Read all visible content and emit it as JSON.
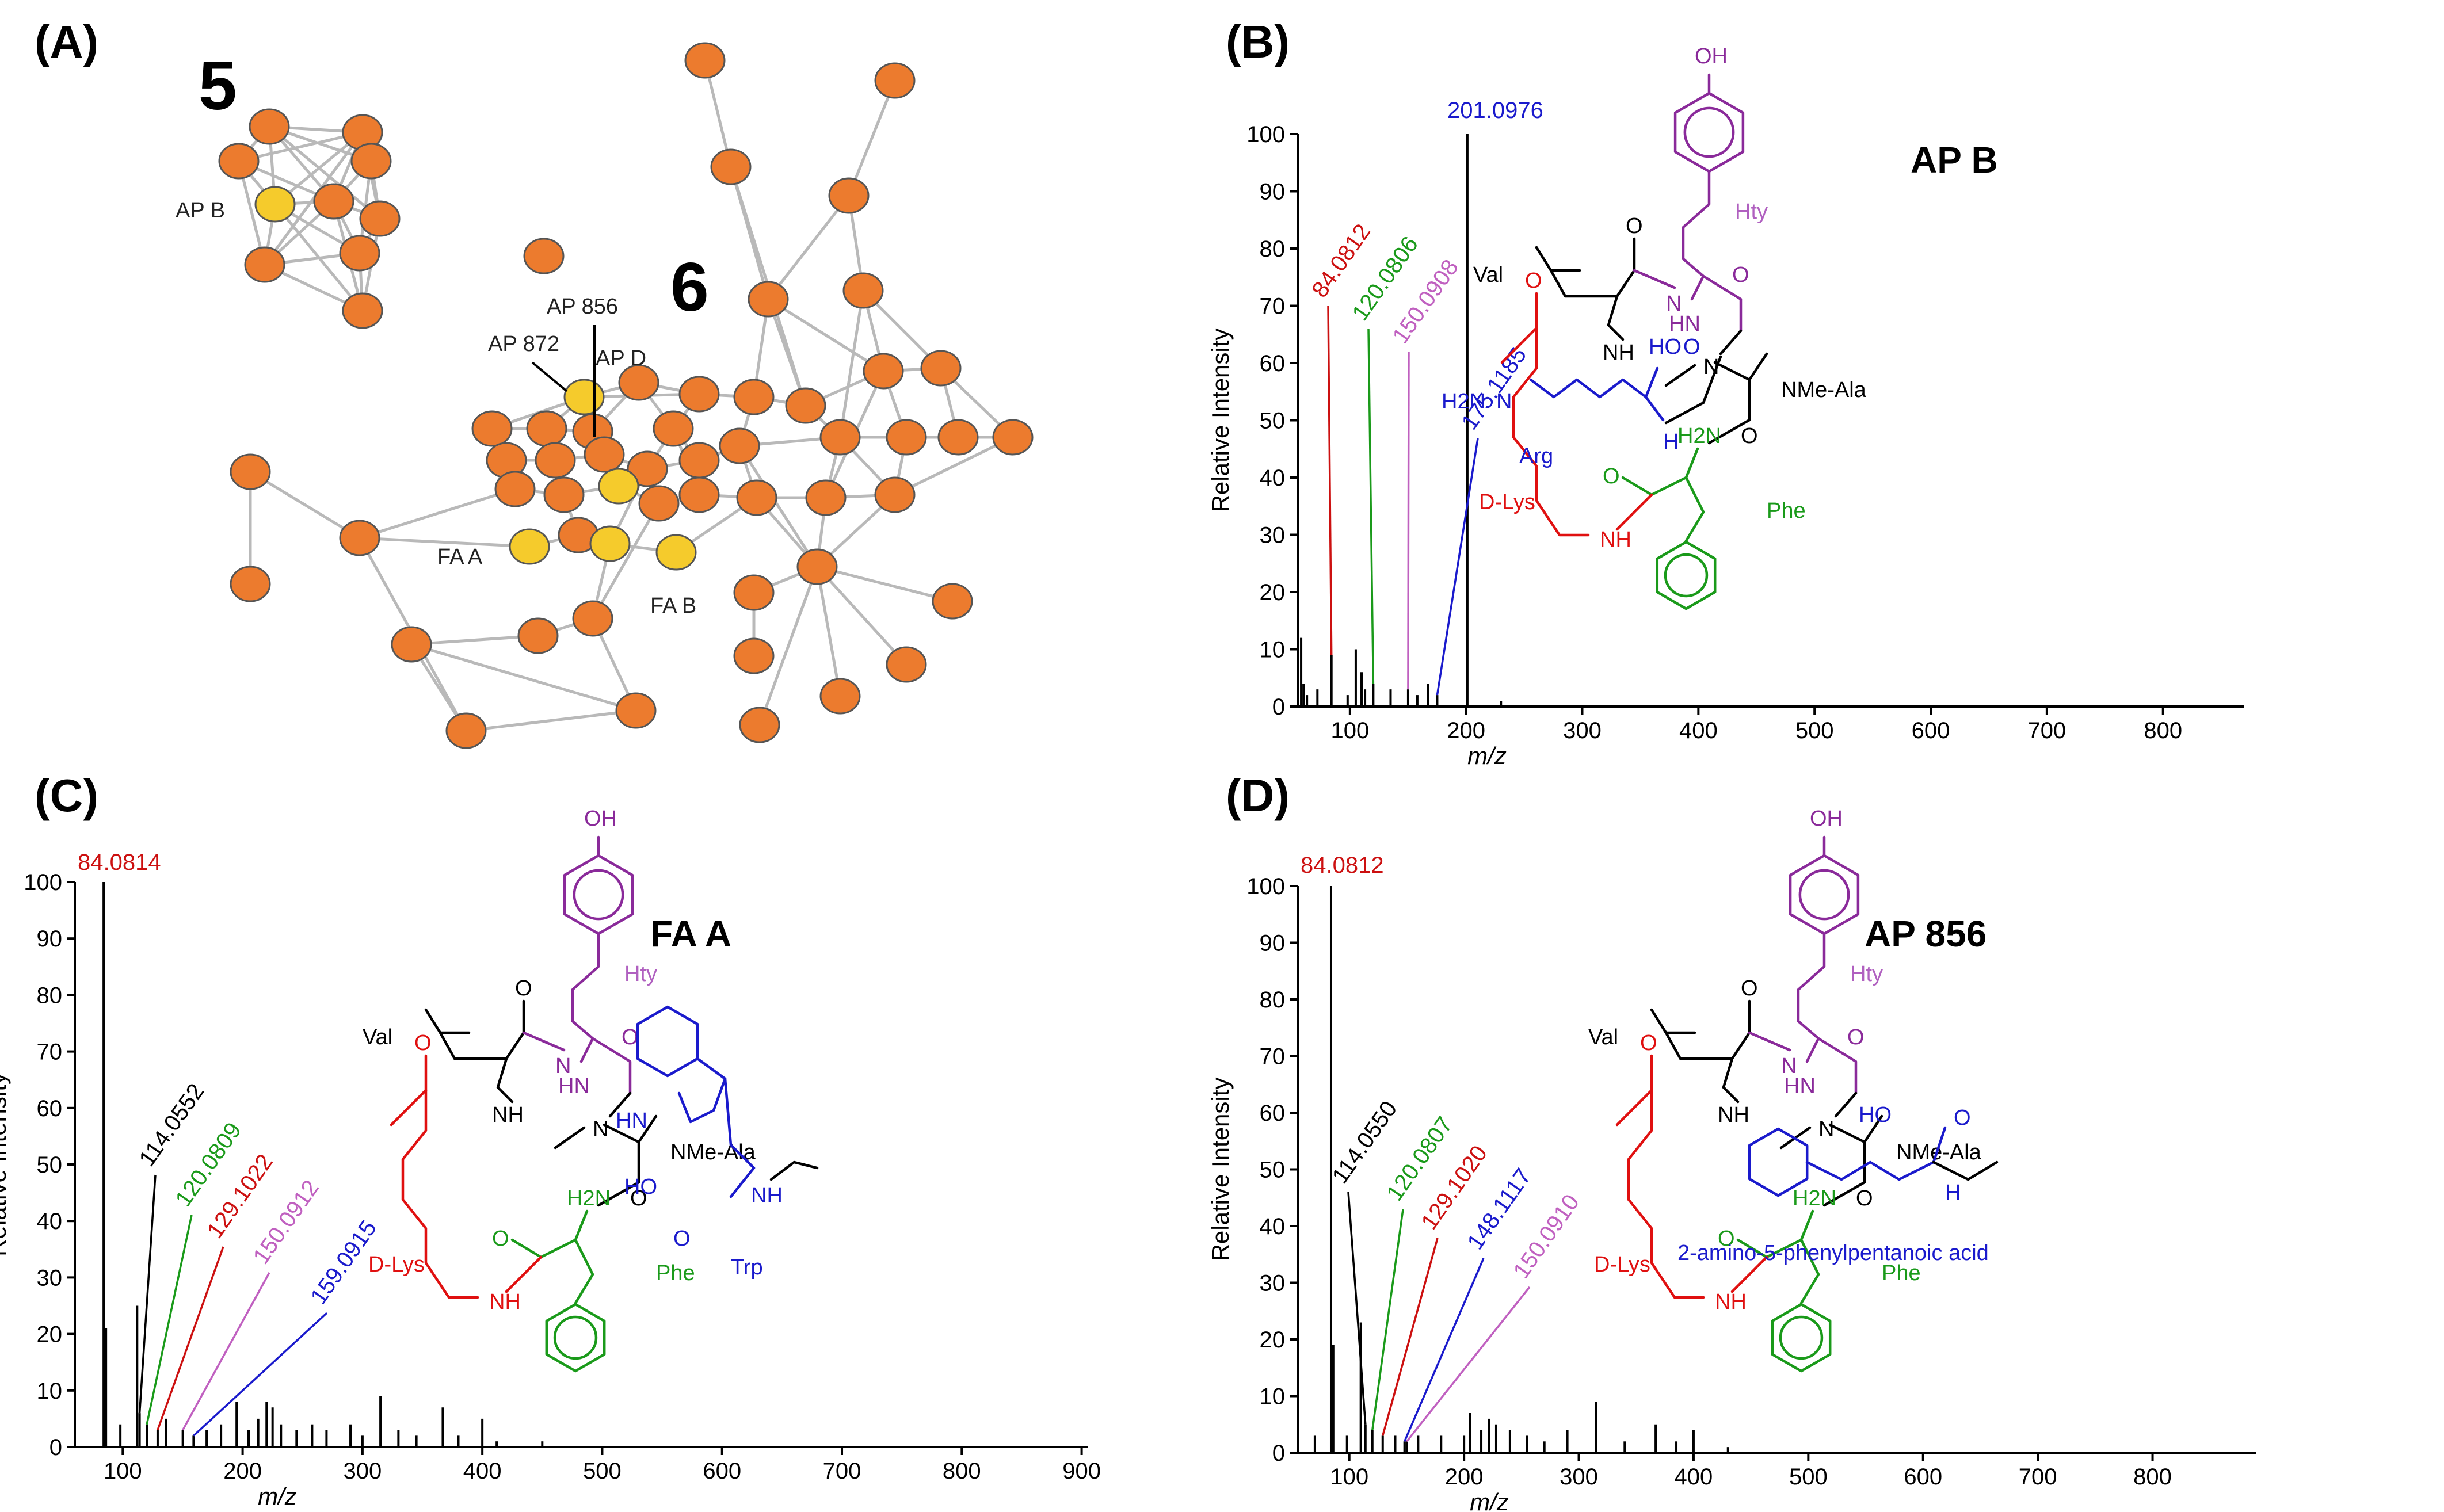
{
  "panels": {
    "A": {
      "label": "(A)",
      "cluster_labels": [
        "5",
        "6"
      ],
      "node_labels": [
        "AP B",
        "AP 856",
        "AP 872",
        "AP D",
        "FA A",
        "FA B"
      ],
      "colors": {
        "node": "#ec7b2e",
        "highlight": "#f5cb2c",
        "edge": "#b9b9b9"
      }
    },
    "B": {
      "label": "(B)"
    },
    "C": {
      "label": "(C)"
    },
    "D": {
      "label": "(D)"
    }
  },
  "chart_data": [
    {
      "panel": "B",
      "type": "bar",
      "title": "AP B",
      "xlabel": "m/z",
      "ylabel": "Relative Intensity",
      "xlim": [
        55,
        870
      ],
      "ylim": [
        0,
        100
      ],
      "xticks": [
        100,
        200,
        300,
        400,
        500,
        600,
        700,
        800
      ],
      "yticks": [
        0,
        10,
        20,
        30,
        40,
        50,
        60,
        70,
        80,
        90,
        100
      ],
      "peaks": [
        [
          58,
          12
        ],
        [
          60,
          4
        ],
        [
          63,
          2
        ],
        [
          72,
          3
        ],
        [
          84.08,
          9
        ],
        [
          98,
          2
        ],
        [
          105,
          10
        ],
        [
          110,
          6
        ],
        [
          113,
          3
        ],
        [
          120.08,
          4
        ],
        [
          135,
          3
        ],
        [
          150.09,
          3
        ],
        [
          158,
          2
        ],
        [
          167,
          4
        ],
        [
          175.12,
          2
        ],
        [
          201.1,
          100
        ],
        [
          230,
          1
        ]
      ],
      "annotations": [
        {
          "label": "201.0976",
          "mz": 201.1,
          "y": 100,
          "color": "#1a1acc"
        },
        {
          "label": "84.0812",
          "mz": 84.08,
          "y": 9,
          "color": "#cc1010"
        },
        {
          "label": "120.0806",
          "mz": 120.08,
          "y": 4,
          "color": "#1a9a1a"
        },
        {
          "label": "150.0908",
          "mz": 150.09,
          "y": 3,
          "color": "#c060c0"
        },
        {
          "label": "175.1185",
          "mz": 175.12,
          "y": 2,
          "color": "#1a1acc"
        }
      ]
    },
    {
      "panel": "C",
      "type": "bar",
      "title": "FA A",
      "xlabel": "m/z",
      "ylabel": "Relative Intensity",
      "xlim": [
        60,
        905
      ],
      "ylim": [
        0,
        100
      ],
      "xticks": [
        100,
        200,
        300,
        400,
        500,
        600,
        700,
        800,
        900
      ],
      "yticks": [
        0,
        10,
        20,
        30,
        40,
        50,
        60,
        70,
        80,
        90,
        100
      ],
      "peaks": [
        [
          84.08,
          100
        ],
        [
          86,
          21
        ],
        [
          98,
          4
        ],
        [
          112,
          25
        ],
        [
          114.06,
          6
        ],
        [
          120.08,
          4
        ],
        [
          129.1,
          3
        ],
        [
          136,
          5
        ],
        [
          150.09,
          3
        ],
        [
          159.09,
          2
        ],
        [
          170,
          3
        ],
        [
          182,
          4
        ],
        [
          195,
          8
        ],
        [
          205,
          3
        ],
        [
          213,
          5
        ],
        [
          220,
          8
        ],
        [
          225,
          7
        ],
        [
          232,
          4
        ],
        [
          245,
          3
        ],
        [
          258,
          4
        ],
        [
          270,
          3
        ],
        [
          290,
          4
        ],
        [
          300,
          2
        ],
        [
          315,
          9
        ],
        [
          330,
          3
        ],
        [
          345,
          2
        ],
        [
          367,
          7
        ],
        [
          380,
          2
        ],
        [
          400,
          5
        ],
        [
          412,
          1
        ],
        [
          450,
          1
        ]
      ],
      "annotations": [
        {
          "label": "84.0814",
          "mz": 84.08,
          "y": 100,
          "color": "#cc1010"
        },
        {
          "label": "114.0552",
          "mz": 114.06,
          "y": 6,
          "color": "#000000"
        },
        {
          "label": "120.0809",
          "mz": 120.08,
          "y": 4,
          "color": "#1a9a1a"
        },
        {
          "label": "129.1022",
          "mz": 129.1,
          "y": 3,
          "color": "#cc1010"
        },
        {
          "label": "150.0912",
          "mz": 150.09,
          "y": 3,
          "color": "#c060c0"
        },
        {
          "label": "159.0915",
          "mz": 159.09,
          "y": 2,
          "color": "#1a1acc"
        }
      ]
    },
    {
      "panel": "D",
      "type": "bar",
      "title": "AP 856",
      "xlabel": "m/z",
      "ylabel": "Relative Intensity",
      "xlim": [
        55,
        890
      ],
      "ylim": [
        0,
        100
      ],
      "xticks": [
        100,
        200,
        300,
        400,
        500,
        600,
        700,
        800
      ],
      "yticks": [
        0,
        10,
        20,
        30,
        40,
        50,
        60,
        70,
        80,
        90,
        100
      ],
      "peaks": [
        [
          70,
          3
        ],
        [
          84.08,
          100
        ],
        [
          86,
          19
        ],
        [
          98,
          3
        ],
        [
          110,
          23
        ],
        [
          114.06,
          5
        ],
        [
          120.08,
          4
        ],
        [
          129.1,
          3
        ],
        [
          140,
          3
        ],
        [
          148.11,
          2
        ],
        [
          150.09,
          2
        ],
        [
          160,
          3
        ],
        [
          180,
          3
        ],
        [
          200,
          3
        ],
        [
          205,
          7
        ],
        [
          215,
          4
        ],
        [
          222,
          6
        ],
        [
          228,
          5
        ],
        [
          240,
          4
        ],
        [
          255,
          3
        ],
        [
          270,
          2
        ],
        [
          290,
          4
        ],
        [
          315,
          9
        ],
        [
          340,
          2
        ],
        [
          367,
          5
        ],
        [
          385,
          2
        ],
        [
          400,
          4
        ],
        [
          430,
          1
        ]
      ],
      "annotations": [
        {
          "label": "84.0812",
          "mz": 84.08,
          "y": 100,
          "color": "#cc1010"
        },
        {
          "label": "114.0550",
          "mz": 114.06,
          "y": 5,
          "color": "#000000"
        },
        {
          "label": "120.0807",
          "mz": 120.08,
          "y": 4,
          "color": "#1a9a1a"
        },
        {
          "label": "129.1020",
          "mz": 129.1,
          "y": 3,
          "color": "#cc1010"
        },
        {
          "label": "148.1117",
          "mz": 148.11,
          "y": 2,
          "color": "#1a1acc"
        },
        {
          "label": "150.0910",
          "mz": 150.09,
          "y": 2,
          "color": "#c060c0"
        }
      ]
    }
  ],
  "structure": {
    "residue_labels": [
      "Val",
      "Hty",
      "NMe-Ala",
      "D-Lys",
      "Phe",
      "Arg",
      "Trp"
    ],
    "atom_labels": [
      "OH",
      "O",
      "NH",
      "N",
      "HO",
      "H",
      "HN",
      "H2N",
      "HO"
    ],
    "B_side_chain": "Arg",
    "C_side_chain": "Trp",
    "D_side_chain": "2-amino-5-phenylpentanoic acid",
    "colors": {
      "val": "#000000",
      "hty": "#8a2a9a",
      "hty_label": "#b060c0",
      "lys": "#e01010",
      "phe": "#1a9a1a",
      "sidechain": "#1a1acc"
    }
  }
}
